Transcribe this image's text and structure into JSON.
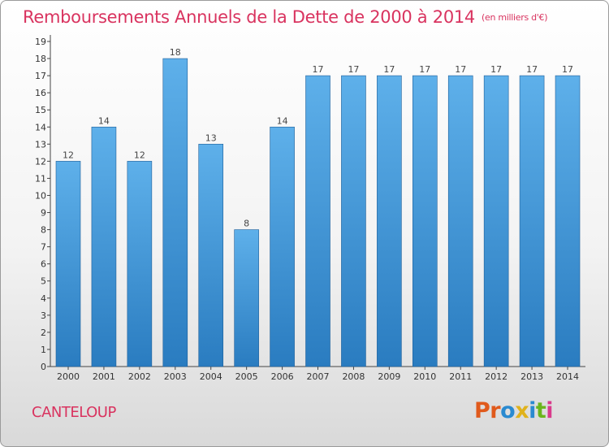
{
  "header": {
    "title": "Remboursements Annuels de la Dette de 2000 à 2014",
    "unit": "(en milliers d'€)"
  },
  "footer": {
    "city": "CANTELOUP",
    "brand": "Proxiti"
  },
  "colors": {
    "title": "#d9335f",
    "bar_light": "#5eb0ea",
    "bar_dark": "#2a7cc0",
    "brand_letters": [
      "#e05a1c",
      "#e05a1c",
      "#2a8ad0",
      "#e0b21c",
      "#2a8ad0",
      "#6ab51c",
      "#d93b8c"
    ]
  },
  "chart_data": {
    "type": "bar",
    "title": "Remboursements Annuels de la Dette de 2000 à 2014",
    "xlabel": "",
    "ylabel": "",
    "categories": [
      "2000",
      "2001",
      "2002",
      "2003",
      "2004",
      "2005",
      "2006",
      "2007",
      "2008",
      "2009",
      "2010",
      "2011",
      "2012",
      "2013",
      "2014"
    ],
    "values": [
      12,
      14,
      12,
      18,
      13,
      8,
      14,
      17,
      17,
      17,
      17,
      17,
      17,
      17,
      17
    ],
    "ylim": [
      0,
      19
    ],
    "yticks": [
      0,
      1,
      2,
      3,
      4,
      5,
      6,
      7,
      8,
      9,
      10,
      11,
      12,
      13,
      14,
      15,
      16,
      17,
      18,
      19
    ],
    "grid": false
  }
}
